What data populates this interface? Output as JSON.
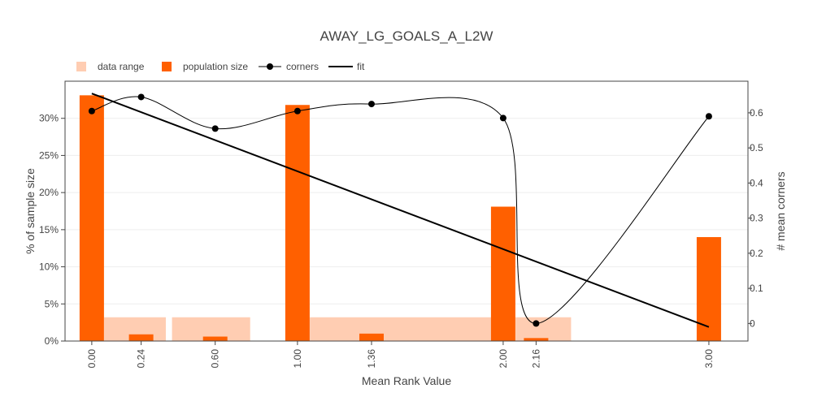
{
  "chart_data": {
    "type": "bar",
    "title": "AWAY_LG_GOALS_A_L2W",
    "xlabel": "Mean Rank Value",
    "ylabel": "% of sample size",
    "y2label": "# mean corners",
    "xlim": [
      -0.13,
      3.19
    ],
    "ylim": [
      0,
      35
    ],
    "y2lim": [
      -0.05,
      0.69
    ],
    "grid": true,
    "legend_position": "top-left",
    "x_ticks": [
      "0.00",
      "0.24",
      "0.60",
      "1.00",
      "1.36",
      "2.00",
      "2.16",
      "3.00"
    ],
    "x_tick_values": [
      0.0,
      0.24,
      0.6,
      1.0,
      1.36,
      2.0,
      2.16,
      3.0
    ],
    "y_ticks": [
      "0%",
      "5%",
      "10%",
      "15%",
      "20%",
      "25%",
      "30%"
    ],
    "y_tick_values": [
      0,
      5,
      10,
      15,
      20,
      25,
      30
    ],
    "y2_ticks": [
      "0",
      "0.1",
      "0.2",
      "0.3",
      "0.4",
      "0.5",
      "0.6"
    ],
    "y2_tick_values": [
      0,
      0.1,
      0.2,
      0.3,
      0.4,
      0.5,
      0.6
    ],
    "legend": [
      {
        "label": "data range",
        "kind": "bar",
        "color": "#ffcdb2"
      },
      {
        "label": "population size",
        "kind": "bar",
        "color": "#ff6000"
      },
      {
        "label": "corners",
        "kind": "line-marker",
        "color": "#000000"
      },
      {
        "label": "fit",
        "kind": "line",
        "color": "#000000"
      }
    ],
    "series": [
      {
        "name": "data range",
        "type": "bar",
        "color": "#ffcdb2",
        "ranges": [
          [
            0.06,
            0.36
          ],
          [
            0.39,
            0.77
          ],
          [
            1.06,
            1.95
          ],
          [
            2.06,
            2.33
          ]
        ],
        "values": [
          3.2,
          3.2,
          3.2,
          3.2
        ]
      },
      {
        "name": "population size",
        "type": "bar",
        "color": "#ff6000",
        "x": [
          0.0,
          0.24,
          0.6,
          1.0,
          1.36,
          2.0,
          2.16,
          3.0
        ],
        "values": [
          33.1,
          0.9,
          0.6,
          31.8,
          1.0,
          18.1,
          0.4,
          14.0
        ]
      },
      {
        "name": "corners",
        "type": "line",
        "axis": "y2",
        "color": "#000000",
        "x": [
          0.0,
          0.24,
          0.6,
          1.0,
          1.36,
          2.0,
          2.16,
          3.0
        ],
        "values": [
          0.605,
          0.645,
          0.555,
          0.605,
          0.625,
          0.585,
          0.0,
          0.59
        ]
      },
      {
        "name": "fit",
        "type": "line",
        "axis": "y2",
        "color": "#000000",
        "x": [
          0.0,
          3.0
        ],
        "values": [
          0.655,
          -0.01
        ]
      }
    ]
  }
}
